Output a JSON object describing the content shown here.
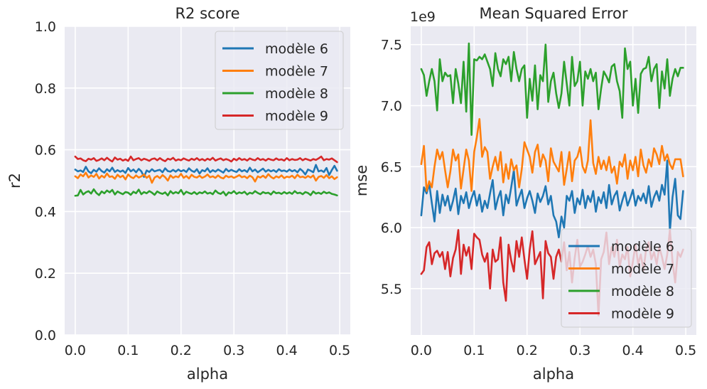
{
  "chart_data": [
    {
      "type": "line",
      "title": "R2 score",
      "xlabel": "alpha",
      "ylabel": "r2",
      "offset_text": "",
      "xlim": [
        -0.02,
        0.52
      ],
      "ylim": [
        0.0,
        1.0
      ],
      "xticks": [
        "0.0",
        "0.1",
        "0.2",
        "0.3",
        "0.4",
        "0.5"
      ],
      "yticks": [
        "0.0",
        "0.2",
        "0.4",
        "0.6",
        "0.8",
        "1.0"
      ],
      "grid": true,
      "legend_position": "upper right",
      "x": {
        "start": 0.0,
        "step": 0.005,
        "count": 100
      },
      "series": [
        {
          "name": "modèle 6",
          "color": "#1f77b4",
          "values": [
            0.536,
            0.53,
            0.533,
            0.528,
            0.545,
            0.53,
            0.524,
            0.535,
            0.529,
            0.54,
            0.531,
            0.526,
            0.537,
            0.53,
            0.542,
            0.528,
            0.534,
            0.529,
            0.533,
            0.525,
            0.541,
            0.53,
            0.536,
            0.527,
            0.538,
            0.53,
            0.512,
            0.533,
            0.528,
            0.537,
            0.53,
            0.533,
            0.535,
            0.527,
            0.54,
            0.531,
            0.529,
            0.535,
            0.529,
            0.536,
            0.53,
            0.534,
            0.528,
            0.54,
            0.532,
            0.528,
            0.537,
            0.523,
            0.534,
            0.53,
            0.54,
            0.527,
            0.534,
            0.529,
            0.536,
            0.531,
            0.526,
            0.538,
            0.53,
            0.535,
            0.531,
            0.528,
            0.537,
            0.53,
            0.534,
            0.528,
            0.542,
            0.53,
            0.536,
            0.527,
            0.533,
            0.539,
            0.529,
            0.535,
            0.53,
            0.534,
            0.528,
            0.537,
            0.531,
            0.533,
            0.529,
            0.536,
            0.53,
            0.534,
            0.527,
            0.538,
            0.531,
            0.52,
            0.536,
            0.532,
            0.527,
            0.551,
            0.53,
            0.533,
            0.528,
            0.541,
            0.518,
            0.534,
            0.548,
            0.532
          ]
        },
        {
          "name": "modèle 7",
          "color": "#ff7f0e",
          "values": [
            0.514,
            0.508,
            0.52,
            0.514,
            0.526,
            0.51,
            0.517,
            0.512,
            0.522,
            0.507,
            0.516,
            0.51,
            0.523,
            0.512,
            0.514,
            0.506,
            0.519,
            0.511,
            0.516,
            0.504,
            0.52,
            0.512,
            0.508,
            0.517,
            0.51,
            0.514,
            0.52,
            0.509,
            0.516,
            0.493,
            0.51,
            0.515,
            0.508,
            0.518,
            0.511,
            0.5,
            0.517,
            0.509,
            0.514,
            0.511,
            0.522,
            0.509,
            0.515,
            0.507,
            0.519,
            0.512,
            0.51,
            0.516,
            0.509,
            0.513,
            0.52,
            0.511,
            0.514,
            0.509,
            0.517,
            0.51,
            0.507,
            0.516,
            0.511,
            0.514,
            0.509,
            0.513,
            0.518,
            0.511,
            0.514,
            0.508,
            0.516,
            0.511,
            0.497,
            0.514,
            0.51,
            0.516,
            0.509,
            0.521,
            0.512,
            0.507,
            0.514,
            0.51,
            0.517,
            0.508,
            0.513,
            0.511,
            0.516,
            0.508,
            0.519,
            0.511,
            0.513,
            0.509,
            0.515,
            0.51,
            0.517,
            0.5,
            0.512,
            0.515,
            0.509,
            0.518,
            0.508,
            0.514,
            0.505,
            0.511
          ]
        },
        {
          "name": "modèle 8",
          "color": "#2ca02c",
          "values": [
            0.451,
            0.452,
            0.47,
            0.455,
            0.462,
            0.466,
            0.458,
            0.472,
            0.46,
            0.453,
            0.465,
            0.459,
            0.468,
            0.462,
            0.47,
            0.455,
            0.465,
            0.46,
            0.456,
            0.463,
            0.461,
            0.454,
            0.464,
            0.459,
            0.471,
            0.456,
            0.463,
            0.459,
            0.466,
            0.461,
            0.454,
            0.465,
            0.46,
            0.457,
            0.462,
            0.452,
            0.466,
            0.458,
            0.463,
            0.459,
            0.47,
            0.455,
            0.464,
            0.46,
            0.457,
            0.463,
            0.456,
            0.462,
            0.459,
            0.465,
            0.458,
            0.461,
            0.456,
            0.468,
            0.46,
            0.457,
            0.464,
            0.452,
            0.462,
            0.459,
            0.466,
            0.457,
            0.462,
            0.459,
            0.464,
            0.455,
            0.461,
            0.458,
            0.466,
            0.46,
            0.456,
            0.463,
            0.459,
            0.461,
            0.455,
            0.465,
            0.459,
            0.461,
            0.457,
            0.463,
            0.458,
            0.462,
            0.457,
            0.466,
            0.459,
            0.461,
            0.456,
            0.463,
            0.46,
            0.453,
            0.465,
            0.458,
            0.461,
            0.457,
            0.464,
            0.459,
            0.462,
            0.457,
            0.455,
            0.452
          ]
        },
        {
          "name": "modèle 9",
          "color": "#d62728",
          "values": [
            0.578,
            0.57,
            0.572,
            0.566,
            0.563,
            0.571,
            0.568,
            0.573,
            0.564,
            0.567,
            0.572,
            0.566,
            0.574,
            0.567,
            0.562,
            0.575,
            0.568,
            0.571,
            0.565,
            0.569,
            0.564,
            0.578,
            0.566,
            0.57,
            0.573,
            0.566,
            0.571,
            0.568,
            0.564,
            0.57,
            0.572,
            0.566,
            0.573,
            0.567,
            0.563,
            0.571,
            0.568,
            0.574,
            0.565,
            0.569,
            0.566,
            0.572,
            0.568,
            0.565,
            0.571,
            0.567,
            0.573,
            0.566,
            0.57,
            0.565,
            0.571,
            0.567,
            0.574,
            0.565,
            0.569,
            0.572,
            0.566,
            0.57,
            0.567,
            0.562,
            0.571,
            0.566,
            0.573,
            0.567,
            0.57,
            0.565,
            0.572,
            0.568,
            0.566,
            0.573,
            0.567,
            0.57,
            0.565,
            0.571,
            0.568,
            0.566,
            0.572,
            0.567,
            0.569,
            0.565,
            0.573,
            0.566,
            0.57,
            0.567,
            0.568,
            0.573,
            0.566,
            0.571,
            0.568,
            0.565,
            0.57,
            0.567,
            0.572,
            0.578,
            0.566,
            0.57,
            0.568,
            0.572,
            0.566,
            0.56
          ]
        }
      ]
    },
    {
      "type": "line",
      "title": "Mean Squared Error",
      "xlabel": "alpha",
      "ylabel": "mse",
      "offset_text": "1e9",
      "xlim": [
        -0.02,
        0.52
      ],
      "ylim": [
        5.12,
        7.65
      ],
      "xticks": [
        "0.0",
        "0.1",
        "0.2",
        "0.3",
        "0.4",
        "0.5"
      ],
      "yticks": [
        "5.5",
        "6.0",
        "6.5",
        "7.0",
        "7.5"
      ],
      "grid": true,
      "legend_position": "lower right",
      "x": {
        "start": 0.0,
        "step": 0.005,
        "count": 100
      },
      "series": [
        {
          "name": "modèle 6",
          "color": "#1f77b4",
          "values": [
            6.1,
            6.33,
            6.28,
            6.36,
            6.2,
            6.05,
            6.3,
            6.12,
            6.27,
            6.18,
            6.26,
            6.14,
            6.22,
            6.32,
            6.11,
            6.26,
            6.2,
            6.29,
            6.16,
            6.24,
            6.3,
            6.18,
            6.27,
            6.13,
            6.22,
            6.16,
            6.28,
            6.39,
            6.15,
            6.24,
            6.3,
            6.1,
            6.27,
            6.2,
            6.33,
            6.47,
            6.18,
            6.25,
            6.31,
            6.16,
            6.24,
            6.3,
            6.22,
            6.12,
            6.28,
            6.21,
            6.26,
            6.34,
            6.19,
            6.26,
            6.1,
            6.05,
            5.92,
            6.09,
            6.0,
            6.26,
            6.22,
            6.3,
            6.12,
            6.24,
            6.19,
            6.31,
            6.16,
            6.26,
            6.21,
            6.3,
            6.13,
            6.25,
            6.2,
            6.29,
            6.16,
            6.35,
            6.19,
            6.26,
            6.3,
            6.14,
            6.22,
            6.29,
            6.18,
            6.24,
            6.31,
            6.18,
            6.26,
            6.22,
            6.28,
            6.2,
            6.34,
            6.17,
            6.25,
            6.3,
            6.22,
            6.35,
            6.27,
            6.55,
            5.97,
            6.25,
            6.4,
            6.1,
            6.07,
            6.3
          ]
        },
        {
          "name": "modèle 7",
          "color": "#ff7f0e",
          "values": [
            6.52,
            6.67,
            6.3,
            6.38,
            6.33,
            6.5,
            6.64,
            6.56,
            6.62,
            6.47,
            6.33,
            6.46,
            6.64,
            6.55,
            6.6,
            6.32,
            6.48,
            6.64,
            6.55,
            6.3,
            6.62,
            6.74,
            6.89,
            6.58,
            6.66,
            6.62,
            6.4,
            6.5,
            6.58,
            6.47,
            6.62,
            6.37,
            6.52,
            6.4,
            6.56,
            6.47,
            6.51,
            6.33,
            6.48,
            6.7,
            6.64,
            6.58,
            6.45,
            6.62,
            6.68,
            6.5,
            6.6,
            6.55,
            6.38,
            6.65,
            6.54,
            6.5,
            6.46,
            6.62,
            6.35,
            6.48,
            6.62,
            6.38,
            6.55,
            6.58,
            6.66,
            6.5,
            6.45,
            6.55,
            6.88,
            6.53,
            6.44,
            6.58,
            6.48,
            6.55,
            6.47,
            6.58,
            6.45,
            6.5,
            6.36,
            6.54,
            6.5,
            6.6,
            6.4,
            6.55,
            6.47,
            6.58,
            6.42,
            6.64,
            6.51,
            6.45,
            6.56,
            6.5,
            6.65,
            6.6,
            6.52,
            6.67,
            6.55,
            6.6,
            6.52,
            6.48,
            6.56,
            6.56,
            6.56,
            6.42
          ]
        },
        {
          "name": "modèle 8",
          "color": "#2ca02c",
          "values": [
            7.3,
            7.25,
            7.08,
            7.2,
            7.3,
            7.2,
            6.96,
            7.38,
            7.2,
            7.27,
            7.24,
            7.25,
            7.02,
            7.3,
            7.18,
            7.02,
            7.36,
            6.95,
            7.51,
            6.76,
            7.38,
            7.37,
            7.4,
            7.38,
            7.42,
            7.36,
            7.3,
            7.16,
            7.43,
            7.3,
            7.24,
            7.38,
            7.34,
            7.4,
            7.2,
            7.44,
            7.3,
            7.2,
            7.3,
            7.33,
            6.9,
            7.22,
            7.04,
            7.33,
            6.97,
            7.25,
            7.2,
            7.5,
            7.03,
            7.2,
            7.27,
            7.1,
            6.98,
            7.1,
            7.36,
            7.18,
            7.0,
            7.4,
            7.16,
            7.2,
            7.36,
            7.0,
            7.28,
            7.22,
            7.3,
            7.2,
            7.27,
            6.97,
            7.14,
            7.28,
            7.24,
            7.19,
            7.32,
            7.34,
            7.2,
            7.12,
            6.9,
            7.47,
            7.3,
            7.36,
            7.0,
            7.22,
            6.94,
            7.26,
            7.3,
            7.31,
            7.4,
            7.2,
            7.3,
            7.34,
            6.98,
            7.28,
            7.14,
            7.38,
            7.08,
            7.22,
            7.3,
            7.24,
            7.31,
            7.31
          ]
        },
        {
          "name": "modèle 9",
          "color": "#d62728",
          "values": [
            5.62,
            5.65,
            5.84,
            5.88,
            5.7,
            5.79,
            5.81,
            5.76,
            5.8,
            5.66,
            5.8,
            5.6,
            5.75,
            5.82,
            5.98,
            5.62,
            5.86,
            5.77,
            5.84,
            5.66,
            5.95,
            5.92,
            5.9,
            5.78,
            5.72,
            5.79,
            5.5,
            5.82,
            5.72,
            5.74,
            5.92,
            5.55,
            5.4,
            5.86,
            5.73,
            5.64,
            5.89,
            5.76,
            5.92,
            5.74,
            5.58,
            5.82,
            5.97,
            5.7,
            5.75,
            5.8,
            5.42,
            5.89,
            5.79,
            5.76,
            5.58,
            5.76,
            5.82,
            5.72,
            5.88,
            5.65,
            5.8,
            5.55,
            5.75,
            5.9,
            5.68,
            5.72,
            5.78,
            5.85,
            5.76,
            5.82,
            5.7,
            5.28,
            5.74,
            5.8,
            5.96,
            5.7,
            5.84,
            5.76,
            5.9,
            5.68,
            5.78,
            5.74,
            5.84,
            5.6,
            5.72,
            5.86,
            5.7,
            5.78,
            5.65,
            5.82,
            5.88,
            5.74,
            5.8,
            5.7,
            5.84,
            5.76,
            5.66,
            5.78,
            5.98,
            5.72,
            5.55,
            5.8,
            5.76,
            5.82
          ]
        }
      ]
    }
  ]
}
